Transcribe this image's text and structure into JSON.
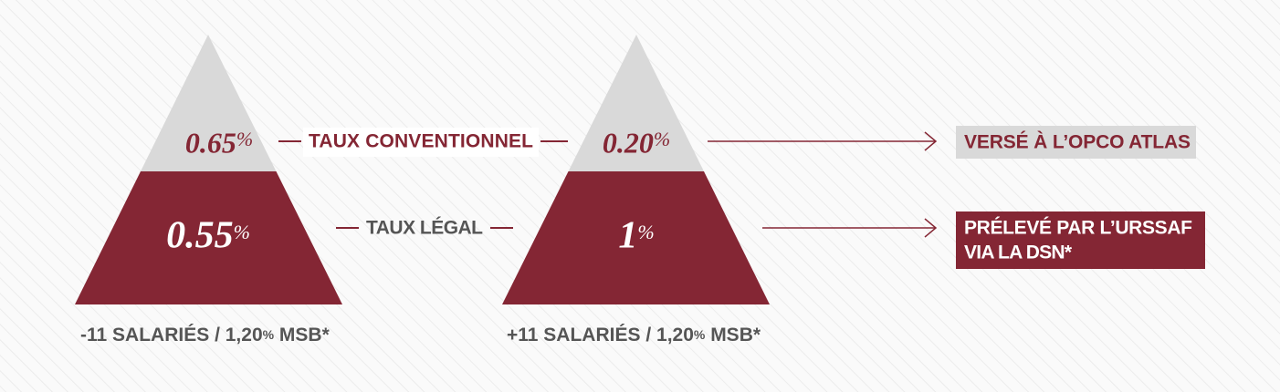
{
  "pyramids": [
    {
      "top": {
        "value": "0.65",
        "unit": "%"
      },
      "bottom": {
        "value": "0.55",
        "unit": "%"
      },
      "caption": {
        "employees": "-11 SALARIÉS",
        "separator": "/",
        "rate": "1,20",
        "unit": "%",
        "basis": "MSB*"
      }
    },
    {
      "top": {
        "value": "0.20",
        "unit": "%"
      },
      "bottom": {
        "value": "1",
        "unit": "%"
      },
      "caption": {
        "employees": "+11 SALARIÉS",
        "separator": "/",
        "rate": "1,20",
        "unit": "%",
        "basis": "MSB*"
      }
    }
  ],
  "labels": {
    "conventional": "TAUX CONVENTIONNEL",
    "legal": "TAUX LÉGAL"
  },
  "destinations": {
    "conventional": "VERSÉ À L’OPCO ATLAS",
    "legal": [
      "PRÉLEVÉ PAR L’URSSAF",
      "VIA LA DSN*"
    ]
  }
}
